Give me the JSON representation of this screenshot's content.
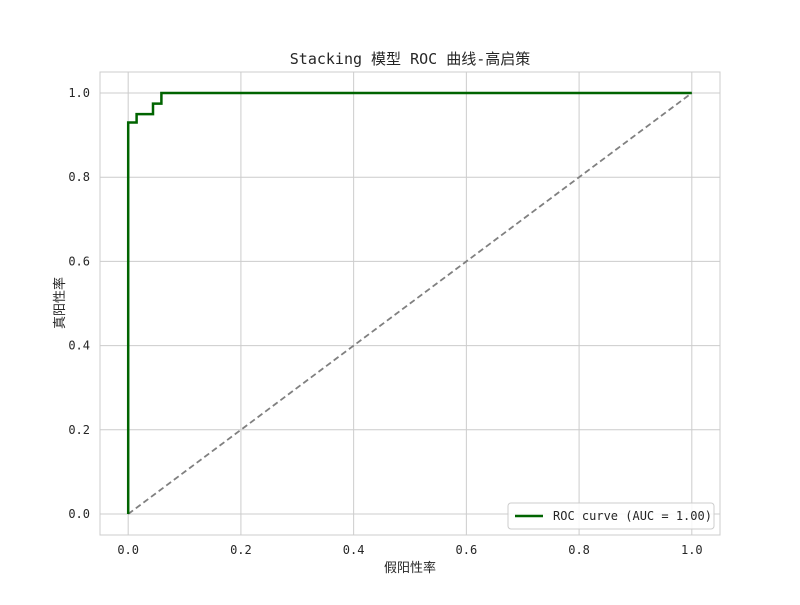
{
  "chart_data": {
    "type": "line",
    "title": "Stacking 模型 ROC 曲线-高启策",
    "xlabel": "假阳性率",
    "ylabel": "真阳性率",
    "xlim": [
      -0.05,
      1.05
    ],
    "ylim": [
      -0.05,
      1.05
    ],
    "xticks": [
      0.0,
      0.2,
      0.4,
      0.6,
      0.8,
      1.0
    ],
    "yticks": [
      0.0,
      0.2,
      0.4,
      0.6,
      0.8,
      1.0
    ],
    "xtick_labels": [
      "0.0",
      "0.2",
      "0.4",
      "0.6",
      "0.8",
      "1.0"
    ],
    "ytick_labels": [
      "0.0",
      "0.2",
      "0.4",
      "0.6",
      "0.8",
      "1.0"
    ],
    "grid": true,
    "legend_position": "bottom-right",
    "series": [
      {
        "name": "ROC curve (AUC = 1.00)",
        "color": "#006400",
        "style": "solid",
        "x": [
          0.0,
          0.0,
          0.0,
          0.015,
          0.015,
          0.044,
          0.044,
          0.059,
          0.059,
          1.0
        ],
        "y": [
          0.0,
          0.93,
          0.93,
          0.93,
          0.95,
          0.95,
          0.975,
          0.975,
          1.0,
          1.0
        ]
      },
      {
        "name": "",
        "color": "#808080",
        "style": "dashed",
        "x": [
          0.0,
          1.0
        ],
        "y": [
          0.0,
          1.0
        ]
      }
    ]
  }
}
